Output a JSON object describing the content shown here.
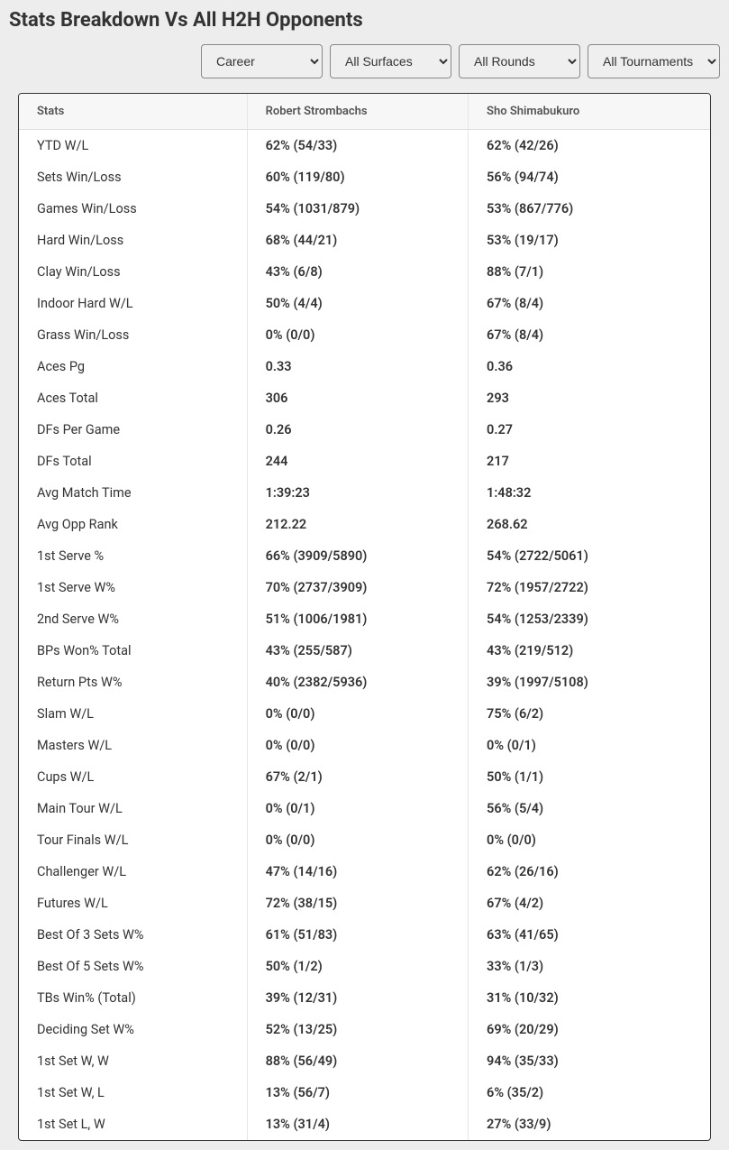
{
  "title": "Stats Breakdown Vs All H2H Opponents",
  "filters": {
    "period": {
      "selected": "Career",
      "options": [
        "Career"
      ]
    },
    "surface": {
      "selected": "All Surfaces",
      "options": [
        "All Surfaces"
      ]
    },
    "round": {
      "selected": "All Rounds",
      "options": [
        "All Rounds"
      ]
    },
    "tournament": {
      "selected": "All Tournaments",
      "options": [
        "All Tournaments"
      ]
    }
  },
  "table": {
    "columns": [
      "Stats",
      "Robert Strombachs",
      "Sho Shimabukuro"
    ],
    "rows": [
      [
        "YTD W/L",
        "62% (54/33)",
        "62% (42/26)"
      ],
      [
        "Sets Win/Loss",
        "60% (119/80)",
        "56% (94/74)"
      ],
      [
        "Games Win/Loss",
        "54% (1031/879)",
        "53% (867/776)"
      ],
      [
        "Hard Win/Loss",
        "68% (44/21)",
        "53% (19/17)"
      ],
      [
        "Clay Win/Loss",
        "43% (6/8)",
        "88% (7/1)"
      ],
      [
        "Indoor Hard W/L",
        "50% (4/4)",
        "67% (8/4)"
      ],
      [
        "Grass Win/Loss",
        "0% (0/0)",
        "67% (8/4)"
      ],
      [
        "Aces Pg",
        "0.33",
        "0.36"
      ],
      [
        "Aces Total",
        "306",
        "293"
      ],
      [
        "DFs Per Game",
        "0.26",
        "0.27"
      ],
      [
        "DFs Total",
        "244",
        "217"
      ],
      [
        "Avg Match Time",
        "1:39:23",
        "1:48:32"
      ],
      [
        "Avg Opp Rank",
        "212.22",
        "268.62"
      ],
      [
        "1st Serve %",
        "66% (3909/5890)",
        "54% (2722/5061)"
      ],
      [
        "1st Serve W%",
        "70% (2737/3909)",
        "72% (1957/2722)"
      ],
      [
        "2nd Serve W%",
        "51% (1006/1981)",
        "54% (1253/2339)"
      ],
      [
        "BPs Won% Total",
        "43% (255/587)",
        "43% (219/512)"
      ],
      [
        "Return Pts W%",
        "40% (2382/5936)",
        "39% (1997/5108)"
      ],
      [
        "Slam W/L",
        "0% (0/0)",
        "75% (6/2)"
      ],
      [
        "Masters W/L",
        "0% (0/0)",
        "0% (0/1)"
      ],
      [
        "Cups W/L",
        "67% (2/1)",
        "50% (1/1)"
      ],
      [
        "Main Tour W/L",
        "0% (0/1)",
        "56% (5/4)"
      ],
      [
        "Tour Finals W/L",
        "0% (0/0)",
        "0% (0/0)"
      ],
      [
        "Challenger W/L",
        "47% (14/16)",
        "62% (26/16)"
      ],
      [
        "Futures W/L",
        "72% (38/15)",
        "67% (4/2)"
      ],
      [
        "Best Of 3 Sets W%",
        "61% (51/83)",
        "63% (41/65)"
      ],
      [
        "Best Of 5 Sets W%",
        "50% (1/2)",
        "33% (1/3)"
      ],
      [
        "TBs Win% (Total)",
        "39% (12/31)",
        "31% (10/32)"
      ],
      [
        "Deciding Set W%",
        "52% (13/25)",
        "69% (20/29)"
      ],
      [
        "1st Set W, W",
        "88% (56/49)",
        "94% (35/33)"
      ],
      [
        "1st Set W, L",
        "13% (56/7)",
        "6% (35/2)"
      ],
      [
        "1st Set L, W",
        "13% (31/4)",
        "27% (33/9)"
      ]
    ]
  },
  "colors": {
    "page_bg": "#ededed",
    "card_bg": "#ffffff",
    "header_bg": "#f7f7f7",
    "border": "#333",
    "text": "#333",
    "header_text": "#555",
    "col_divider": "#e5e5e5"
  }
}
